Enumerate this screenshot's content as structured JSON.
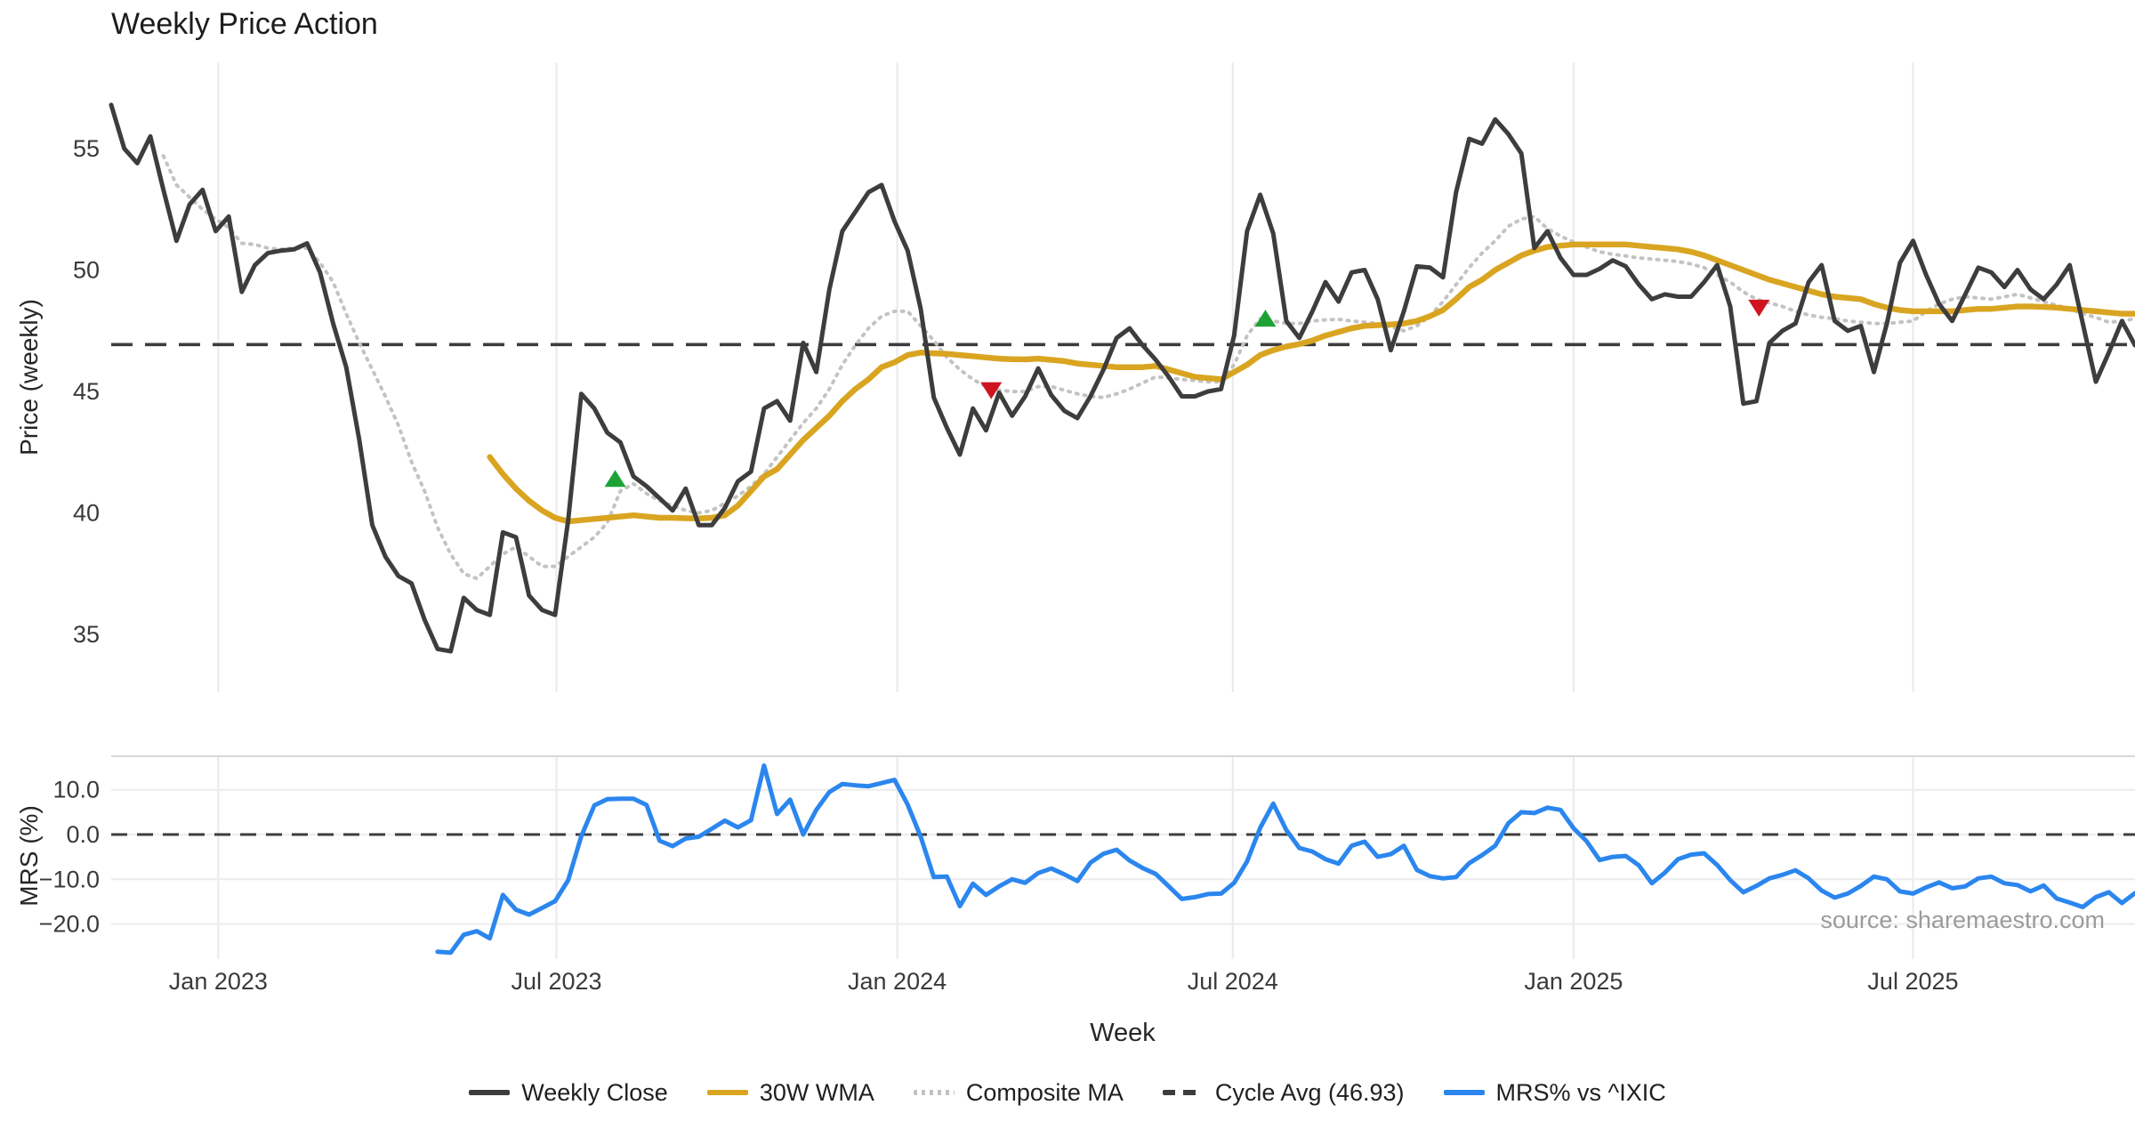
{
  "title": "Weekly Price Action",
  "source_note": "source: sharemaestro.com",
  "xlabel": "Week",
  "legend": {
    "weekly_close": "Weekly Close",
    "wma": "30W WMA",
    "composite": "Composite MA",
    "cycle_avg": "Cycle Avg (46.93)",
    "mrs": "MRS% vs ^IXIC"
  },
  "colors": {
    "close": "#3d3d3d",
    "wma": "#D9A521",
    "composite": "#c3c3c3",
    "cycle_avg": "#3d3d3d",
    "mrs": "#2b86ee",
    "buy_marker": "#1DA335",
    "sell_marker": "#CF1420",
    "grid": "#e9e9ef",
    "mrs_grid": "#ececec",
    "panel_border": "#d8d8dc"
  },
  "chart_data": {
    "type": "line",
    "x_unit": "week-index",
    "n_weeks": 156,
    "x_ticks": [
      {
        "label": "Jan 2023",
        "week": 8.2
      },
      {
        "label": "Jul 2023",
        "week": 34.1
      },
      {
        "label": "Jan 2024",
        "week": 60.2
      },
      {
        "label": "Jul 2024",
        "week": 85.9
      },
      {
        "label": "Jan 2025",
        "week": 112.0
      },
      {
        "label": "Jul 2025",
        "week": 138.0
      }
    ],
    "price_panel": {
      "ylabel": "Price (weekly)",
      "yticks": [
        35,
        40,
        45,
        50,
        55
      ],
      "ylim": [
        32.6,
        58.6
      ],
      "cycle_avg": 46.93,
      "grid": "vertical-only",
      "series": [
        {
          "name": "Weekly Close",
          "values": [
            56.8,
            55.0,
            54.4,
            55.5,
            53.3,
            51.2,
            52.7,
            53.3,
            51.6,
            52.2,
            49.1,
            50.2,
            50.7,
            50.8,
            50.85,
            51.1,
            49.9,
            47.8,
            46.0,
            43.0,
            39.5,
            38.2,
            37.4,
            37.1,
            35.6,
            34.4,
            34.3,
            36.5,
            36.0,
            35.8,
            39.2,
            39.0,
            36.6,
            36.0,
            35.8,
            39.7,
            44.9,
            44.3,
            43.3,
            42.9,
            41.5,
            41.1,
            40.6,
            40.1,
            41.0,
            39.5,
            39.5,
            40.2,
            41.3,
            41.7,
            44.3,
            44.6,
            43.8,
            47.0,
            45.8,
            49.2,
            51.6,
            52.4,
            53.2,
            53.5,
            52.0,
            50.8,
            48.4,
            44.75,
            43.5,
            42.4,
            44.3,
            43.4,
            44.95,
            44.0,
            44.8,
            45.95,
            44.85,
            44.2,
            43.9,
            44.8,
            45.9,
            47.2,
            47.6,
            46.9,
            46.3,
            45.6,
            44.8,
            44.8,
            45.0,
            45.1,
            47.3,
            51.6,
            53.1,
            51.5,
            47.9,
            47.2,
            48.3,
            49.5,
            48.7,
            49.9,
            50.0,
            48.8,
            46.7,
            48.3,
            50.15,
            50.1,
            49.7,
            53.2,
            55.4,
            55.2,
            56.2,
            55.6,
            54.8,
            50.9,
            51.6,
            50.5,
            49.8,
            49.8,
            50.05,
            50.4,
            50.15,
            49.4,
            48.8,
            49.0,
            48.9,
            48.9,
            49.5,
            50.2,
            48.5,
            44.5,
            44.6,
            47.0,
            47.5,
            47.8,
            49.5,
            50.2,
            47.9,
            47.5,
            47.7,
            45.8,
            47.8,
            50.3,
            51.2,
            49.8,
            48.6,
            47.9,
            49.0,
            50.1,
            49.9,
            49.3,
            50.0,
            49.2,
            48.8,
            49.4,
            50.2,
            47.8,
            45.4,
            46.6,
            47.9,
            46.9
          ]
        },
        {
          "name": "30W WMA",
          "values": [
            null,
            null,
            null,
            null,
            null,
            null,
            null,
            null,
            null,
            null,
            null,
            null,
            null,
            null,
            null,
            null,
            null,
            null,
            null,
            null,
            null,
            null,
            null,
            null,
            null,
            null,
            null,
            null,
            null,
            42.3,
            41.6,
            41.0,
            40.5,
            40.1,
            39.8,
            39.65,
            39.7,
            39.75,
            39.8,
            39.85,
            39.9,
            39.85,
            39.8,
            39.8,
            39.78,
            39.77,
            39.8,
            39.9,
            40.3,
            40.9,
            41.5,
            41.8,
            42.4,
            43.0,
            43.5,
            44.0,
            44.6,
            45.1,
            45.5,
            46.0,
            46.2,
            46.5,
            46.6,
            46.57,
            46.55,
            46.5,
            46.45,
            46.4,
            46.35,
            46.33,
            46.32,
            46.35,
            46.3,
            46.25,
            46.15,
            46.1,
            46.05,
            46.0,
            46.0,
            46.0,
            46.05,
            45.9,
            45.75,
            45.6,
            45.55,
            45.5,
            45.8,
            46.1,
            46.5,
            46.7,
            46.85,
            46.95,
            47.1,
            47.3,
            47.45,
            47.6,
            47.7,
            47.73,
            47.76,
            47.8,
            47.9,
            48.1,
            48.35,
            48.8,
            49.3,
            49.6,
            50.0,
            50.3,
            50.6,
            50.8,
            50.95,
            51.0,
            51.05,
            51.05,
            51.05,
            51.05,
            51.05,
            51.0,
            50.95,
            50.9,
            50.85,
            50.75,
            50.6,
            50.4,
            50.2,
            50.0,
            49.8,
            49.6,
            49.45,
            49.3,
            49.15,
            49.0,
            48.9,
            48.85,
            48.8,
            48.6,
            48.45,
            48.35,
            48.3,
            48.3,
            48.3,
            48.3,
            48.35,
            48.4,
            48.4,
            48.45,
            48.5,
            48.5,
            48.48,
            48.45,
            48.4,
            48.35,
            48.3,
            48.25,
            48.2,
            48.2
          ]
        },
        {
          "name": "Composite MA",
          "values": [
            null,
            null,
            null,
            null,
            54.7,
            53.5,
            53.0,
            52.5,
            52.1,
            51.75,
            51.1,
            51.05,
            50.9,
            50.85,
            50.9,
            50.9,
            50.3,
            49.5,
            48.2,
            47.0,
            45.9,
            44.8,
            43.6,
            42.1,
            40.9,
            39.4,
            38.3,
            37.5,
            37.3,
            37.8,
            38.3,
            38.6,
            38.2,
            37.8,
            37.8,
            38.2,
            38.6,
            39.0,
            39.6,
            40.9,
            41.2,
            40.8,
            40.5,
            40.3,
            40.1,
            40.0,
            40.1,
            40.4,
            40.7,
            41.1,
            41.6,
            42.3,
            43.0,
            43.7,
            44.3,
            45.1,
            46.1,
            46.9,
            47.6,
            48.1,
            48.3,
            48.3,
            47.7,
            47.1,
            46.4,
            45.9,
            45.5,
            45.2,
            45.05,
            45.0,
            45.0,
            45.2,
            45.2,
            45.05,
            44.9,
            44.8,
            44.75,
            44.9,
            45.1,
            45.35,
            45.6,
            45.55,
            45.5,
            45.45,
            45.4,
            45.4,
            46.1,
            47.3,
            48.0,
            47.9,
            47.8,
            47.8,
            47.9,
            47.95,
            47.97,
            47.9,
            47.85,
            47.8,
            47.65,
            47.5,
            47.7,
            48.1,
            48.7,
            49.4,
            50.1,
            50.7,
            51.2,
            51.8,
            52.1,
            52.2,
            51.7,
            51.4,
            51.15,
            50.95,
            50.75,
            50.65,
            50.58,
            50.5,
            50.45,
            50.4,
            50.35,
            50.25,
            50.1,
            49.8,
            49.5,
            49.1,
            48.8,
            48.65,
            48.5,
            48.3,
            48.15,
            48.05,
            48.0,
            47.9,
            47.85,
            47.8,
            47.8,
            47.85,
            47.9,
            48.3,
            48.6,
            48.8,
            48.9,
            48.85,
            48.8,
            48.9,
            49.0,
            48.85,
            48.7,
            48.55,
            48.4,
            48.2,
            48.05,
            47.85,
            47.9,
            48.0
          ]
        }
      ],
      "buy_signals": [
        {
          "week": 38.6,
          "price": 41.4
        },
        {
          "week": 88.4,
          "price": 48.0
        }
      ],
      "sell_signals": [
        {
          "week": 67.4,
          "price": 45.05
        },
        {
          "week": 126.2,
          "price": 48.45
        }
      ]
    },
    "mrs_panel": {
      "ylabel": "MRS (%)",
      "yticks": [
        -20,
        -10,
        0,
        10
      ],
      "ytick_labels": [
        "−20.0",
        "−10.0",
        "0.0",
        "10.0"
      ],
      "ylim": [
        -29.5,
        17.5
      ],
      "zero_line": 0,
      "series": [
        {
          "name": "MRS% vs ^IXIC",
          "values": [
            null,
            null,
            null,
            null,
            null,
            null,
            null,
            null,
            null,
            null,
            null,
            null,
            null,
            null,
            null,
            null,
            null,
            null,
            null,
            null,
            null,
            null,
            null,
            null,
            null,
            -26.2,
            -26.4,
            -22.4,
            -21.6,
            -23.2,
            -13.5,
            -16.8,
            -17.9,
            -16.4,
            -14.9,
            -10.2,
            -0.4,
            6.5,
            7.9,
            8.0,
            8.0,
            6.6,
            -1.4,
            -2.6,
            -0.9,
            -0.5,
            1.3,
            3.1,
            1.6,
            3.2,
            15.4,
            4.6,
            7.8,
            0.0,
            5.5,
            9.5,
            11.3,
            11.0,
            10.8,
            11.5,
            12.2,
            6.7,
            -0.5,
            -9.5,
            -9.4,
            -16.0,
            -11.0,
            -13.5,
            -11.6,
            -10.0,
            -10.8,
            -8.6,
            -7.6,
            -8.9,
            -10.4,
            -6.3,
            -4.3,
            -3.4,
            -5.8,
            -7.5,
            -8.8,
            -11.6,
            -14.4,
            -14.0,
            -13.3,
            -13.2,
            -10.8,
            -6.0,
            1.5,
            6.9,
            1.0,
            -3.0,
            -3.8,
            -5.5,
            -6.5,
            -2.5,
            -1.6,
            -5.0,
            -4.4,
            -2.5,
            -7.9,
            -9.3,
            -9.8,
            -9.5,
            -6.4,
            -4.6,
            -2.5,
            2.5,
            5.0,
            4.8,
            6.0,
            5.5,
            1.4,
            -1.5,
            -5.7,
            -5.0,
            -4.8,
            -6.9,
            -10.9,
            -8.5,
            -5.5,
            -4.5,
            -4.2,
            -6.8,
            -10.2,
            -12.9,
            -11.5,
            -9.8,
            -9.0,
            -8.0,
            -9.8,
            -12.5,
            -14.1,
            -13.2,
            -11.5,
            -9.4,
            -10.0,
            -12.7,
            -13.2,
            -11.8,
            -10.7,
            -12.0,
            -11.6,
            -9.8,
            -9.4,
            -10.9,
            -11.3,
            -12.7,
            -11.4,
            -14.3,
            -15.2,
            -16.2,
            -14.0,
            -12.9,
            -15.3,
            -13.1
          ]
        }
      ]
    }
  }
}
